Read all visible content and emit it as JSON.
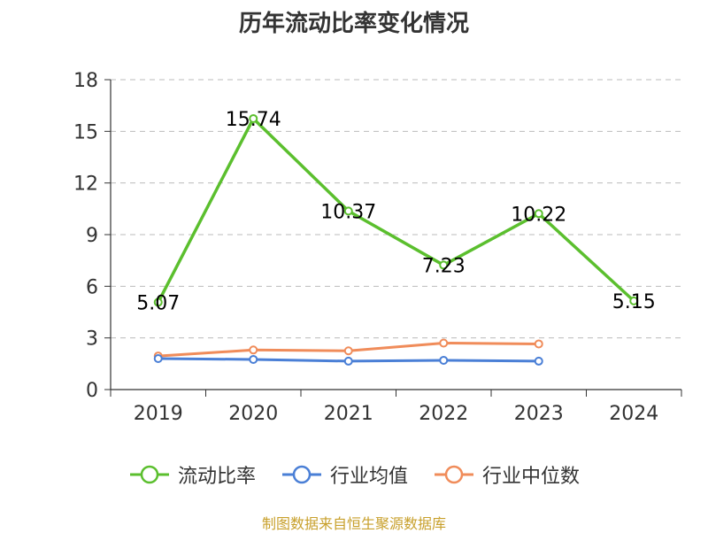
{
  "chart_data": {
    "type": "line",
    "title": "历年流动比率变化情况",
    "categories": [
      "2019",
      "2020",
      "2021",
      "2022",
      "2023",
      "2024"
    ],
    "ylim": [
      0,
      18
    ],
    "yticks": [
      0,
      3,
      6,
      9,
      12,
      15,
      18
    ],
    "grid": true,
    "legend_position": "bottom",
    "series": [
      {
        "name": "流动比率",
        "color": "#5bbf2e",
        "values": [
          5.07,
          15.74,
          10.37,
          7.23,
          10.22,
          5.15
        ],
        "labels": [
          "5.07",
          "15.74",
          "10.37",
          "7.23",
          "10.22",
          "5.15"
        ]
      },
      {
        "name": "行业均值",
        "color": "#4a7fd6",
        "values": [
          1.8,
          1.75,
          1.65,
          1.7,
          1.65,
          null
        ]
      },
      {
        "name": "行业中位数",
        "color": "#f08c5a",
        "values": [
          1.95,
          2.3,
          2.25,
          2.7,
          2.65,
          null
        ]
      }
    ]
  },
  "source": "制图数据来自恒生聚源数据库"
}
